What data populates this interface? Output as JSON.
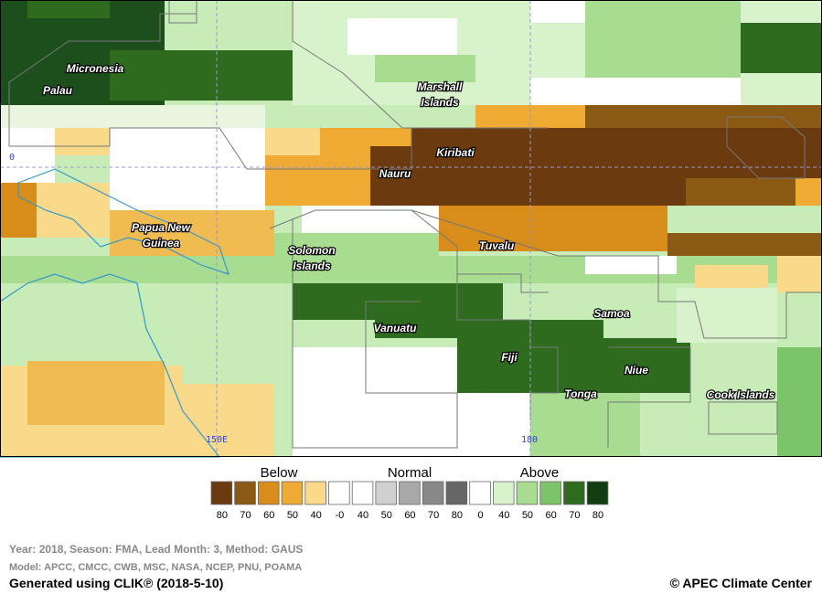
{
  "map": {
    "region_labels": [
      {
        "lines": [
          "Micronesia"
        ]
      },
      {
        "lines": [
          "Palau"
        ]
      },
      {
        "lines": [
          "Marshall",
          "Islands"
        ]
      },
      {
        "lines": [
          "Kiribati"
        ]
      },
      {
        "lines": [
          "Nauru"
        ]
      },
      {
        "lines": [
          "Papua New",
          "Guinea"
        ]
      },
      {
        "lines": [
          "Solomon",
          "Islands"
        ]
      },
      {
        "lines": [
          "Tuvalu"
        ]
      },
      {
        "lines": [
          "Samoa"
        ]
      },
      {
        "lines": [
          "Vanuatu"
        ]
      },
      {
        "lines": [
          "Fiji"
        ]
      },
      {
        "lines": [
          "Niue"
        ]
      },
      {
        "lines": [
          "Tonga"
        ]
      },
      {
        "lines": [
          "Cook Islands"
        ]
      }
    ],
    "grid_labels": [
      "0",
      "150E",
      "180"
    ]
  },
  "legend": {
    "groups": [
      "Below",
      "Normal",
      "Above"
    ],
    "swatches": [
      {
        "color": "#6b3a0f",
        "label": "80"
      },
      {
        "color": "#8a5a14",
        "label": "70"
      },
      {
        "color": "#d88c1a",
        "label": "60"
      },
      {
        "color": "#eeaa33",
        "label": "50"
      },
      {
        "color": "#f9d98a",
        "label": "40"
      },
      {
        "color": "#ffffff",
        "label": "-0"
      },
      {
        "color": "#ffffff",
        "label": "40"
      },
      {
        "color": "#d0d0d0",
        "label": "50"
      },
      {
        "color": "#a8a8a8",
        "label": "60"
      },
      {
        "color": "#888888",
        "label": "70"
      },
      {
        "color": "#666666",
        "label": "80"
      },
      {
        "color": "#ffffff",
        "label": "0"
      },
      {
        "color": "#d8f2cc",
        "label": "40"
      },
      {
        "color": "#a8dc90",
        "label": "50"
      },
      {
        "color": "#7cc46a",
        "label": "60"
      },
      {
        "color": "#2e6b1e",
        "label": "70"
      },
      {
        "color": "#123d12",
        "label": "80"
      }
    ]
  },
  "footer": {
    "info": "Year: 2018, Season: FMA, Lead Month: 3, Method: GAUS",
    "models": "Model: APCC, CMCC, CWB, MSC, NASA, NCEP, PNU, POAMA",
    "generated": "Generated using CLIK℗ (2018-5-10)",
    "copyright": "© APEC Climate Center"
  }
}
